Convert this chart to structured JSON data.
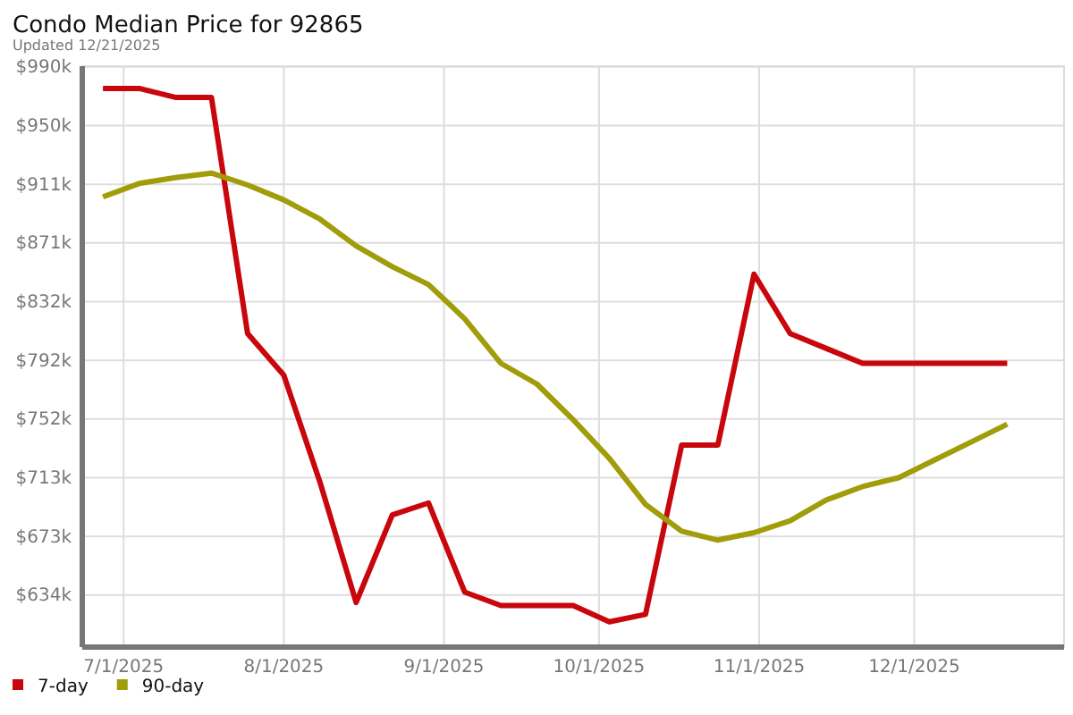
{
  "chart_data": {
    "type": "line",
    "title": "Condo Median Price for 92865",
    "subtitle": "Updated 12/21/2025",
    "x": [
      "2025-06-27",
      "2025-07-04",
      "2025-07-11",
      "2025-07-18",
      "2025-07-25",
      "2025-08-01",
      "2025-08-08",
      "2025-08-15",
      "2025-08-22",
      "2025-08-29",
      "2025-09-05",
      "2025-09-12",
      "2025-09-19",
      "2025-09-26",
      "2025-10-03",
      "2025-10-10",
      "2025-10-17",
      "2025-10-24",
      "2025-10-31",
      "2025-11-07",
      "2025-11-14",
      "2025-11-21",
      "2025-11-28",
      "2025-12-05",
      "2025-12-12",
      "2025-12-19"
    ],
    "series": [
      {
        "name": "7-day",
        "color": "#c8060c",
        "values": [
          975,
          975,
          969,
          969,
          810,
          782,
          710,
          629,
          688,
          696,
          636,
          627,
          627,
          627,
          616,
          621,
          735,
          735,
          850,
          810,
          800,
          790,
          790,
          790,
          790,
          790
        ]
      },
      {
        "name": "90-day",
        "color": "#a09c0a",
        "values": [
          902,
          911,
          915,
          918,
          910,
          900,
          887,
          869,
          855,
          843,
          820,
          790,
          776,
          752,
          726,
          695,
          677,
          671,
          676,
          684,
          698,
          707,
          713,
          725,
          737,
          749
        ]
      }
    ],
    "xlim": [
      "2025-06-23",
      "2025-12-30"
    ],
    "xticks": [
      {
        "value": "2025-07-01",
        "label": "7/1/2025"
      },
      {
        "value": "2025-08-01",
        "label": "8/1/2025"
      },
      {
        "value": "2025-09-01",
        "label": "9/1/2025"
      },
      {
        "value": "2025-10-01",
        "label": "10/1/2025"
      },
      {
        "value": "2025-11-01",
        "label": "11/1/2025"
      },
      {
        "value": "2025-12-01",
        "label": "12/1/2025"
      }
    ],
    "ylim": [
      599,
      990
    ],
    "yticks": [
      {
        "value": 634,
        "label": "$634k"
      },
      {
        "value": 673.5,
        "label": "$673k"
      },
      {
        "value": 713,
        "label": "$713k"
      },
      {
        "value": 752.5,
        "label": "$752k"
      },
      {
        "value": 792,
        "label": "$792k"
      },
      {
        "value": 831.5,
        "label": "$832k"
      },
      {
        "value": 871,
        "label": "$871k"
      },
      {
        "value": 910.5,
        "label": "$911k"
      },
      {
        "value": 950,
        "label": "$950k"
      },
      {
        "value": 989.5,
        "label": "$990k"
      }
    ],
    "grid": true,
    "legend": "bottom left",
    "marker": "none",
    "line_style": "solid"
  }
}
